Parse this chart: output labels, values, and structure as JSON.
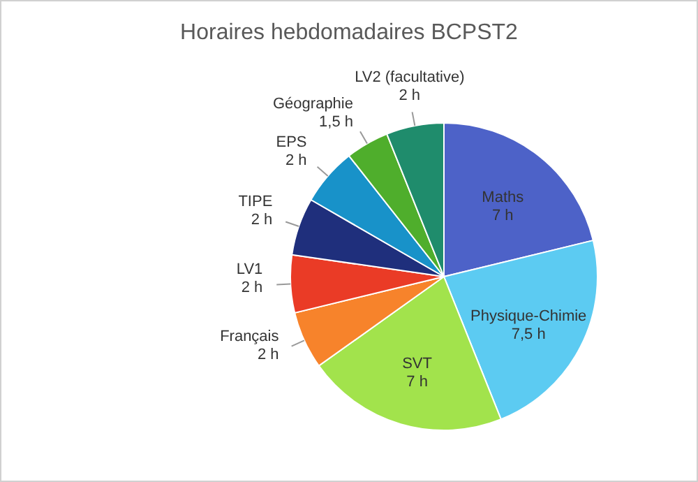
{
  "chart_data": {
    "type": "pie",
    "title": "Horaires hebdomadaires BCPST2",
    "categories": [
      "Maths",
      "Physique-Chimie",
      "SVT",
      "Français",
      "LV1",
      "TIPE",
      "EPS",
      "Géographie",
      "LV2 (facultative)"
    ],
    "values": [
      7,
      7.5,
      7,
      2,
      2,
      2,
      2,
      1.5,
      2
    ],
    "value_labels": [
      "7 h",
      "7,5 h",
      "7 h",
      "2 h",
      "2 h",
      "2 h",
      "2 h",
      "1,5 h",
      "2 h"
    ],
    "colors": [
      "#4d62c8",
      "#5ccbf2",
      "#a2e34c",
      "#f7832b",
      "#ea3b26",
      "#1f2f7c",
      "#1892c9",
      "#4fae2c",
      "#1f8c6c"
    ],
    "legend": false
  }
}
